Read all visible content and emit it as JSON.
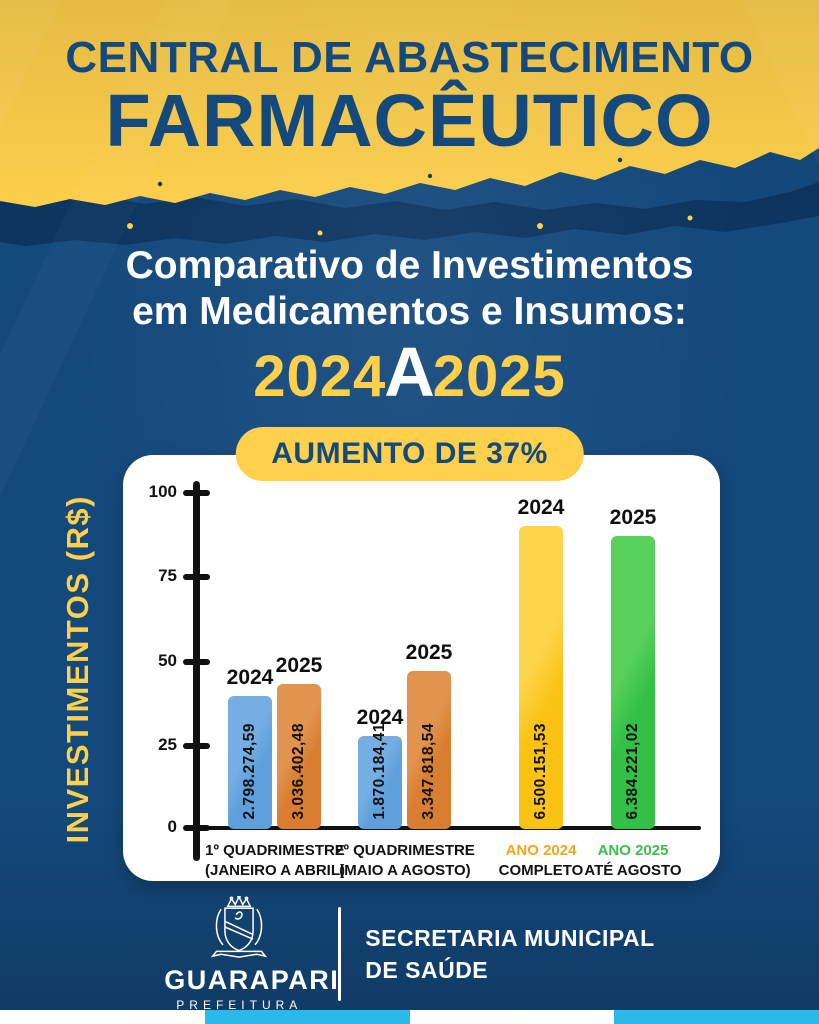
{
  "header": {
    "line1": "CENTRAL DE ABASTECIMENTO",
    "line2": "FARMACÊUTICO"
  },
  "title": {
    "line1": "Comparativo de Investimentos",
    "line2": "em Medicamentos e Insumos:",
    "year_from": "2024",
    "connector": "A",
    "year_to": "2025"
  },
  "badge_label": "AUMENTO DE 37%",
  "chart_data": {
    "type": "bar",
    "title": "Comparativo de Investimentos em Medicamentos e Insumos: 2024 a 2025",
    "annotation": "AUMENTO DE 37%",
    "ylabel": "INVESTIMENTOS (R$)",
    "ylim": [
      0,
      100
    ],
    "ytick_labels": [
      "0",
      "25",
      "50",
      "75",
      "100"
    ],
    "grid": false,
    "legend": "none",
    "groups": [
      {
        "label_line1": "1º QUADRIMESTRE",
        "label_line2": "(JANEIRO A ABRIL)",
        "bars": [
          {
            "year": "2024",
            "value": 2798274.59,
            "value_label": "2.798.274,59",
            "height_units": 39.5,
            "color": "#5FA0DC",
            "color_light": "#74AEE2"
          },
          {
            "year": "2025",
            "value": 3036402.48,
            "value_label": "3.036.402,48",
            "height_units": 43.0,
            "color": "#D97E30",
            "color_light": "#E2934E"
          }
        ]
      },
      {
        "label_line1": "2º QUADRIMESTRE",
        "label_line2": "(MAIO A AGOSTO)",
        "bars": [
          {
            "year": "2024",
            "value": 1870184.41,
            "value_label": "1.870.184,41",
            "height_units": 27.5,
            "color": "#5FA0DC",
            "color_light": "#74AEE2"
          },
          {
            "year": "2025",
            "value": 3347818.54,
            "value_label": "3.347.818,54",
            "height_units": 47.0,
            "color": "#D97E30",
            "color_light": "#E2934E"
          }
        ]
      },
      {
        "label_line1": "ANO 2024",
        "label_line2": "COMPLETO",
        "bars": [
          {
            "year": "2024",
            "value": 6500151.53,
            "value_label": "6.500.151,53",
            "height_units": 90.0,
            "color": "#FAC314",
            "color_light": "#FDD54C"
          }
        ]
      },
      {
        "label_line1": "ANO 2025",
        "label_line2": "ATÉ AGOSTO",
        "bars": [
          {
            "year": "2025",
            "value": 6384221.02,
            "value_label": "6.384.221,02",
            "height_units": 87.0,
            "color": "#33C047",
            "color_light": "#58D15C"
          }
        ]
      }
    ]
  },
  "footer": {
    "city": "GUARAPARI",
    "org": "PREFEITURA",
    "dept_line1": "SECRETARIA MUNICIPAL",
    "dept_line2": "DE SAÚDE"
  },
  "colors": {
    "yellow": "#FFD04B",
    "navy_text": "#14497E",
    "background": "#14497D",
    "tear_navy": "#0C3560",
    "card": "#FFFFFF",
    "axis": "#111111",
    "white": "#FFFFFF",
    "cyan": "#2BB9EA",
    "ano2024": "#F6A51C",
    "ano2025": "#3CBE4C"
  }
}
